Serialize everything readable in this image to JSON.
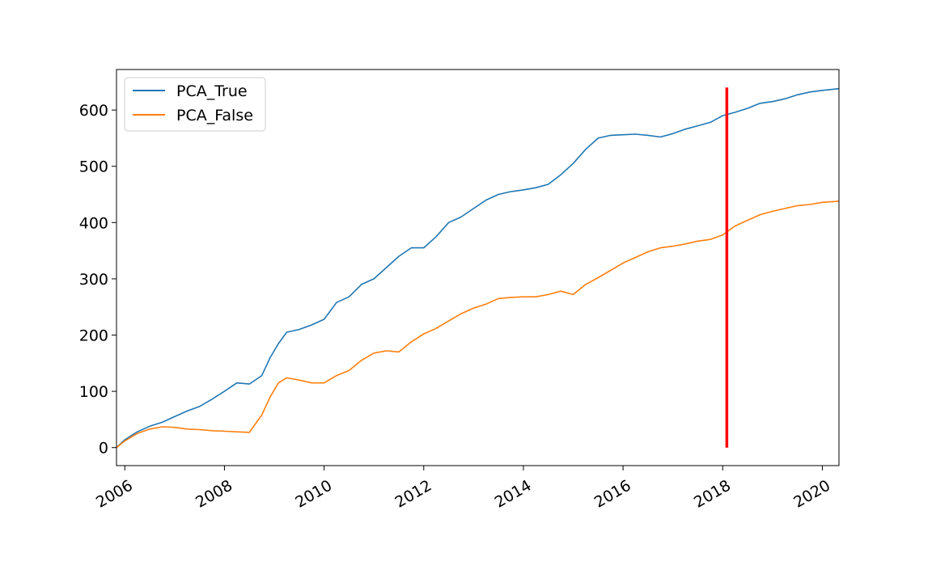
{
  "chart_data": {
    "type": "line",
    "title": "",
    "xlabel": "",
    "ylabel": "",
    "xlim": [
      "2005-11",
      "2020-05"
    ],
    "ylim": [
      -32,
      672
    ],
    "x_ticks": [
      "2006",
      "2008",
      "2010",
      "2012",
      "2014",
      "2016",
      "2018",
      "2020"
    ],
    "y_ticks": [
      "0",
      "100",
      "200",
      "300",
      "400",
      "500",
      "600"
    ],
    "grid": false,
    "legend_position": "top-left",
    "series": [
      {
        "name": "PCA_True",
        "color": "#1f77b4",
        "x": [
          "2005-11",
          "2006-01",
          "2006-04",
          "2006-07",
          "2006-10",
          "2007-01",
          "2007-04",
          "2007-07",
          "2007-10",
          "2008-01",
          "2008-04",
          "2008-07",
          "2008-10",
          "2008-12",
          "2009-02",
          "2009-04",
          "2009-07",
          "2009-10",
          "2010-01",
          "2010-04",
          "2010-07",
          "2010-10",
          "2011-01",
          "2011-04",
          "2011-07",
          "2011-10",
          "2012-01",
          "2012-04",
          "2012-07",
          "2012-10",
          "2013-01",
          "2013-04",
          "2013-07",
          "2013-10",
          "2014-01",
          "2014-04",
          "2014-07",
          "2014-10",
          "2015-01",
          "2015-04",
          "2015-07",
          "2015-10",
          "2016-01",
          "2016-04",
          "2016-07",
          "2016-10",
          "2017-01",
          "2017-04",
          "2017-07",
          "2017-10",
          "2018-01",
          "2018-04",
          "2018-07",
          "2018-10",
          "2019-01",
          "2019-04",
          "2019-07",
          "2019-10",
          "2020-01",
          "2020-05"
        ],
        "values": [
          0,
          14,
          28,
          38,
          45,
          55,
          65,
          73,
          86,
          100,
          115,
          113,
          128,
          160,
          185,
          205,
          210,
          218,
          228,
          258,
          268,
          290,
          300,
          320,
          340,
          355,
          355,
          375,
          400,
          410,
          425,
          440,
          450,
          455,
          458,
          462,
          468,
          485,
          505,
          530,
          550,
          555,
          556,
          557,
          555,
          552,
          558,
          566,
          572,
          578,
          590,
          596,
          603,
          612,
          615,
          620,
          627,
          632,
          635,
          638
        ]
      },
      {
        "name": "PCA_False",
        "color": "#ff7f0e",
        "x": [
          "2005-11",
          "2006-01",
          "2006-04",
          "2006-07",
          "2006-10",
          "2007-01",
          "2007-04",
          "2007-07",
          "2007-10",
          "2008-01",
          "2008-04",
          "2008-07",
          "2008-10",
          "2008-12",
          "2009-02",
          "2009-04",
          "2009-07",
          "2009-10",
          "2010-01",
          "2010-04",
          "2010-07",
          "2010-10",
          "2011-01",
          "2011-04",
          "2011-07",
          "2011-10",
          "2012-01",
          "2012-04",
          "2012-07",
          "2012-10",
          "2013-01",
          "2013-04",
          "2013-07",
          "2013-10",
          "2014-01",
          "2014-04",
          "2014-07",
          "2014-10",
          "2015-01",
          "2015-04",
          "2015-07",
          "2015-10",
          "2016-01",
          "2016-04",
          "2016-07",
          "2016-10",
          "2017-01",
          "2017-04",
          "2017-07",
          "2017-10",
          "2018-01",
          "2018-04",
          "2018-07",
          "2018-10",
          "2019-01",
          "2019-04",
          "2019-07",
          "2019-10",
          "2020-01",
          "2020-05"
        ],
        "values": [
          0,
          12,
          25,
          33,
          37,
          36,
          33,
          32,
          30,
          29,
          28,
          27,
          58,
          90,
          115,
          124,
          120,
          115,
          115,
          128,
          137,
          155,
          168,
          172,
          170,
          188,
          202,
          212,
          225,
          238,
          248,
          255,
          265,
          267,
          268,
          268,
          272,
          278,
          272,
          290,
          302,
          315,
          328,
          338,
          348,
          355,
          358,
          362,
          367,
          370,
          378,
          394,
          404,
          414,
          420,
          425,
          430,
          432,
          436,
          438
        ]
      },
      {
        "name": "",
        "color": "#ff0000",
        "x": [
          "2018-02",
          "2018-02"
        ],
        "values": [
          0,
          640
        ]
      }
    ],
    "legend": [
      "PCA_True",
      "PCA_False"
    ]
  }
}
